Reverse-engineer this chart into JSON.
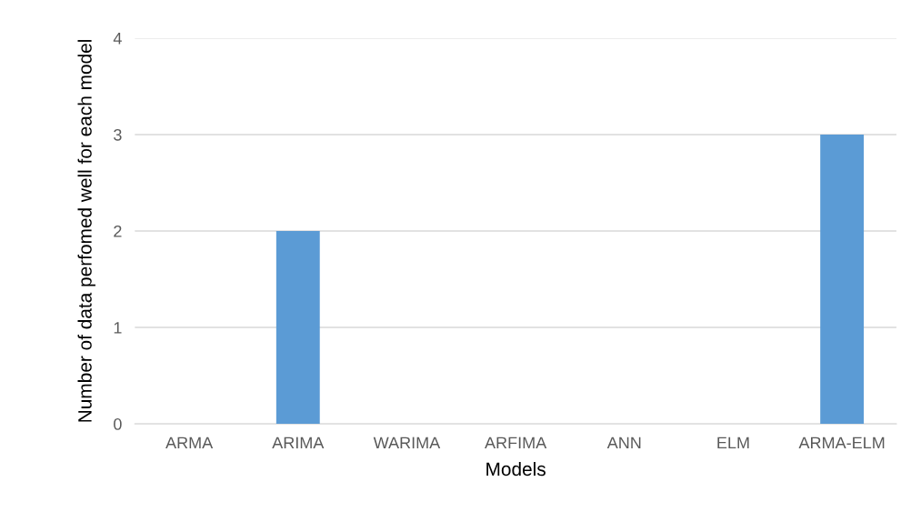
{
  "chart_data": {
    "type": "bar",
    "xlabel": "Models",
    "ylabel": "Number of data perfomed well for each model",
    "categories": [
      "ARMA",
      "ARIMA",
      "WARIMA",
      "ARFIMA",
      "ANN",
      "ELM",
      "ARMA-ELM"
    ],
    "values": [
      0,
      2,
      0,
      0,
      0,
      0,
      3
    ],
    "color": "#5b9bd5",
    "ylim": [
      0,
      4
    ],
    "yticks": [
      0,
      1,
      2,
      3,
      4
    ],
    "grid": "y",
    "legend": false
  }
}
